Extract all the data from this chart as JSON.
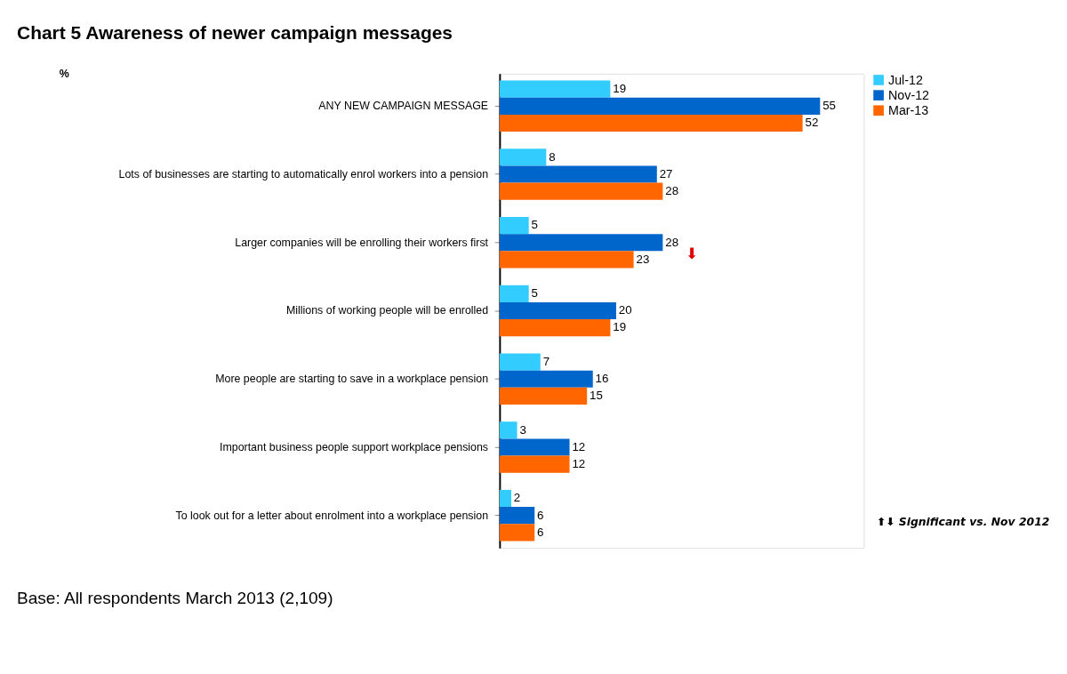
{
  "chart_data": {
    "type": "bar",
    "orientation": "horizontal",
    "title": "Chart 5    Awareness of newer campaign messages",
    "xlabel": "%",
    "categories": [
      "ANY NEW CAMPAIGN MESSAGE",
      "Lots of businesses are starting to automatically enrol workers into a pension",
      "Larger companies will be enrolling their workers first",
      "Millions of working people will be enrolled",
      "More people are starting to save in a workplace pension",
      "Important business people support workplace pensions",
      "To look out for a letter about enrolment into a workplace pension"
    ],
    "series": [
      {
        "name": "Jul-12",
        "color": "#33ccff",
        "values": [
          19,
          8,
          5,
          5,
          7,
          3,
          2
        ]
      },
      {
        "name": "Nov-12",
        "color": "#0066cc",
        "values": [
          55,
          27,
          28,
          20,
          16,
          12,
          6
        ]
      },
      {
        "name": "Mar-13",
        "color": "#ff6600",
        "values": [
          52,
          28,
          23,
          19,
          15,
          12,
          6
        ]
      }
    ],
    "data_labels": true,
    "legend": "right",
    "grid": false,
    "annotations": [
      "⬇",
      "⬆⬇ Significant vs. Nov 2012",
      "Base: All respondents March 2013 (2,109)"
    ]
  }
}
